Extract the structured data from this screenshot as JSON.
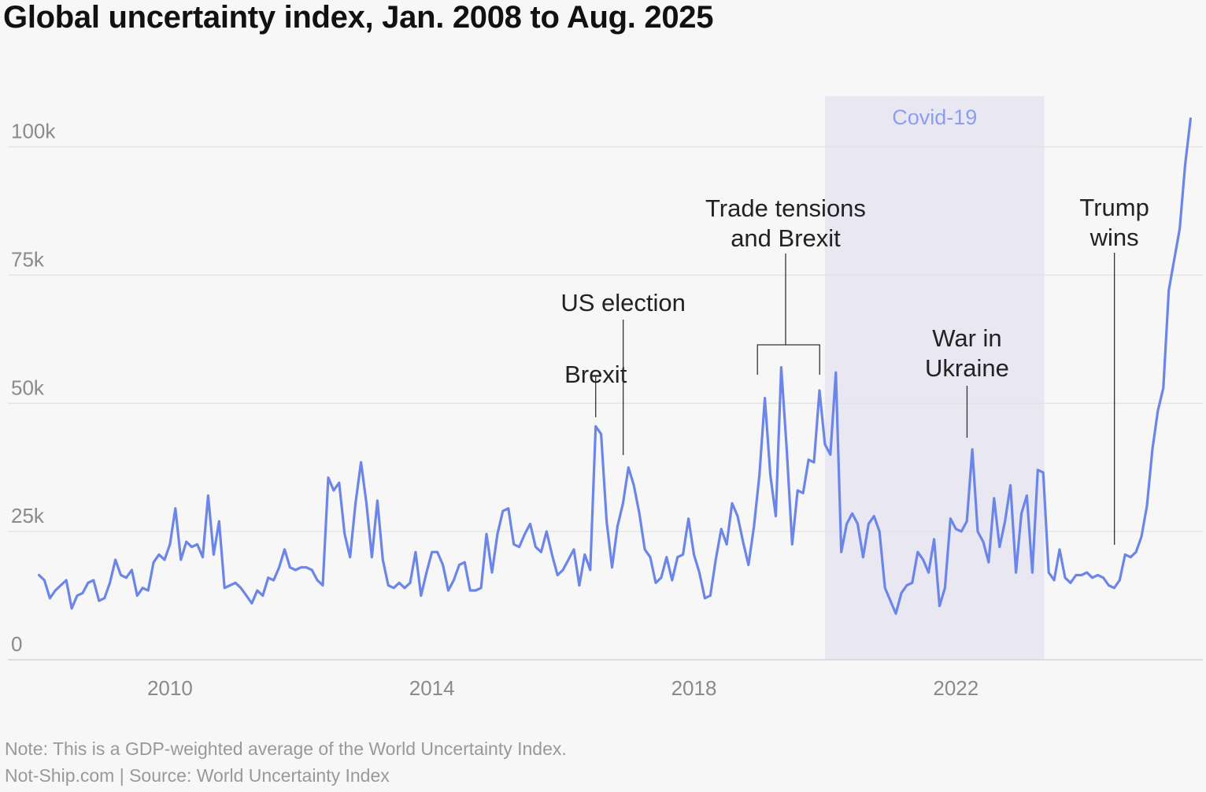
{
  "title": "Global uncertainty index, Jan. 2008 to Aug. 2025",
  "footer": {
    "note": "Note: This is a GDP-weighted average of the World Uncertainty Index.",
    "brand": "Not-Ship.com",
    "separator": "|",
    "source": "Source: World Uncertainty Index"
  },
  "colors": {
    "line": "#6b85e8",
    "shade": "#e8e7f2",
    "shade_label": "#8c9ef0",
    "grid": "#e2e2e2",
    "tick": "#8a8a8a",
    "annotation": "#222222"
  },
  "chart_data": {
    "type": "line",
    "title": "Global uncertainty index, Jan. 2008 to Aug. 2025",
    "xlabel": "",
    "ylabel": "",
    "xlim": [
      2008.0,
      2025.67
    ],
    "ylim": [
      0,
      105000
    ],
    "grid": true,
    "legend": "none",
    "x_ticks": [
      2010,
      2014,
      2018,
      2022
    ],
    "x_tick_labels": [
      "2010",
      "2014",
      "2018",
      "2022"
    ],
    "y_ticks": [
      0,
      25000,
      50000,
      75000,
      100000
    ],
    "y_tick_labels": [
      "0",
      "25k",
      "50k",
      "75k",
      "100k"
    ],
    "shaded_regions": [
      {
        "label": "Covid-19",
        "x_start": 2020.0,
        "x_end": 2023.35
      }
    ],
    "annotations": [
      {
        "lines": [
          "Brexit"
        ],
        "x": 2016.5
      },
      {
        "lines": [
          "US election"
        ],
        "x": 2016.92
      },
      {
        "lines": [
          "Trade tensions",
          "and Brexit"
        ],
        "x": 2019.4,
        "bracket": [
          2018.97,
          2019.92
        ]
      },
      {
        "lines": [
          "War in",
          "Ukraine"
        ],
        "x": 2022.17
      },
      {
        "lines": [
          "Trump",
          "wins"
        ],
        "x": 2024.42
      }
    ],
    "series": [
      {
        "name": "Global uncertainty index",
        "x_start": 2008.0,
        "x_step_months": 1,
        "values": [
          16500,
          15500,
          12000,
          13500,
          14500,
          15500,
          10000,
          12500,
          13000,
          15000,
          15500,
          11500,
          12000,
          15000,
          19500,
          16500,
          16000,
          17500,
          12500,
          14000,
          13500,
          19000,
          20500,
          19500,
          22500,
          29500,
          19500,
          23000,
          22000,
          22500,
          20000,
          32000,
          20500,
          27000,
          14000,
          14500,
          15000,
          14000,
          12500,
          11000,
          13500,
          12500,
          16000,
          15500,
          18000,
          21500,
          18000,
          17500,
          18000,
          18000,
          17500,
          15500,
          14500,
          35500,
          33000,
          34500,
          24500,
          20000,
          30500,
          38500,
          30500,
          20000,
          31000,
          19500,
          14500,
          14000,
          15000,
          14000,
          15000,
          21000,
          12500,
          17000,
          21000,
          21000,
          18500,
          13500,
          15500,
          18500,
          19000,
          13500,
          13500,
          14000,
          24500,
          17000,
          24500,
          29000,
          29500,
          22500,
          22000,
          24500,
          26500,
          22000,
          21000,
          25000,
          20500,
          16500,
          17500,
          19500,
          21500,
          14500,
          20500,
          17500,
          45500,
          44000,
          27000,
          18000,
          26000,
          30500,
          37500,
          34000,
          28500,
          21500,
          20000,
          15000,
          16000,
          20000,
          15500,
          20000,
          20500,
          27500,
          20500,
          17000,
          12000,
          12500,
          19500,
          25500,
          22500,
          30500,
          28000,
          23000,
          18500,
          26000,
          36000,
          51000,
          36000,
          28000,
          57000,
          41000,
          22500,
          33000,
          32500,
          39000,
          38500,
          52500,
          42000,
          40000,
          56000,
          21000,
          26500,
          28500,
          26500,
          20000,
          26500,
          28000,
          25000,
          14000,
          11500,
          9000,
          13000,
          14500,
          15000,
          21000,
          19500,
          17000,
          23500,
          10500,
          14000,
          27500,
          25500,
          25000,
          27000,
          41000,
          25000,
          23000,
          19000,
          31500,
          22000,
          27000,
          34000,
          17000,
          28500,
          32000,
          17000,
          37000,
          36500,
          17000,
          15500,
          21500,
          16000,
          15000,
          16500,
          16500,
          17000,
          16000,
          16500,
          16000,
          14500,
          14000,
          15500,
          20500,
          20000,
          21000,
          24000,
          30000,
          41000,
          48500,
          53000,
          72000,
          78000,
          84000,
          96500,
          105500
        ]
      }
    ]
  }
}
